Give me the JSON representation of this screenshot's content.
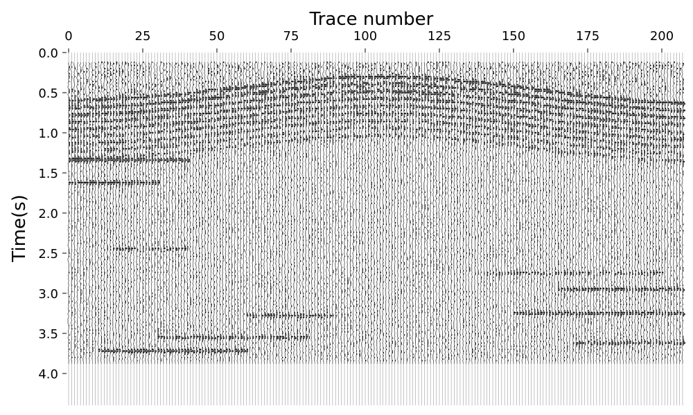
{
  "chart_data": {
    "type": "seismic-wiggle",
    "xlabel": "Trace number",
    "ylabel": "Time(s)",
    "x_axis_position": "top",
    "xlim": [
      0,
      207
    ],
    "ylim": [
      4.4,
      0.0
    ],
    "y_inverted": true,
    "grid": false,
    "trace_count": 208,
    "fill": "black positive lobes",
    "xticks": [
      0,
      25,
      50,
      75,
      100,
      125,
      150,
      175,
      200
    ],
    "xtick_labels": [
      "0",
      "25",
      "50",
      "75",
      "100",
      "125",
      "150",
      "175",
      "200"
    ],
    "yticks": [
      0.0,
      0.5,
      1.0,
      1.5,
      2.0,
      2.5,
      3.0,
      3.5,
      4.0
    ],
    "ytick_labels": [
      "0.0",
      "0.5",
      "1.0",
      "1.5",
      "2.0",
      "2.5",
      "3.0",
      "3.5",
      "4.0"
    ],
    "colors": {
      "wiggle": "#000000",
      "trace_line": "#888888"
    }
  }
}
